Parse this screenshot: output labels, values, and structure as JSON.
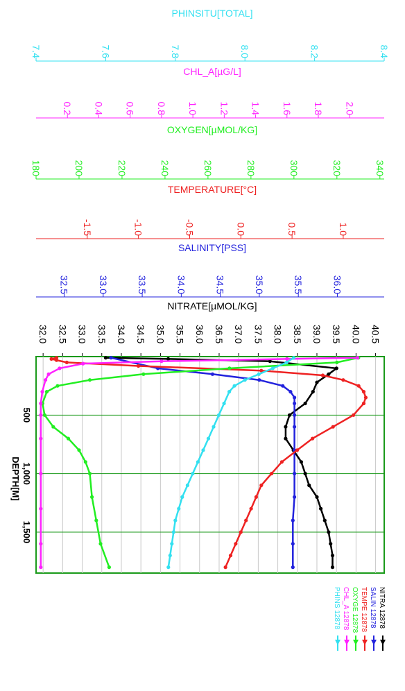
{
  "chart_data": {
    "type": "line",
    "orientation": "rotated-90",
    "depth_axis": {
      "title": "DEPTH[M]",
      "range": [
        0,
        1850
      ],
      "ticks": [
        500,
        1000,
        1500
      ],
      "tick_labels": [
        "500",
        "1,000",
        "1,500"
      ]
    },
    "axes": [
      {
        "key": "phinsitu",
        "title": "PHINSITU[TOTAL]",
        "color": "#33e0f0",
        "range": [
          7.4,
          8.4
        ],
        "ticks": [
          7.4,
          7.6,
          7.8,
          8.0,
          8.2,
          8.4
        ],
        "tick_labels": [
          "7.4",
          "7.6",
          "7.8",
          "8.0",
          "8.2",
          "8.4"
        ]
      },
      {
        "key": "chl",
        "title": "CHL_A[µG/L]",
        "color": "#ff22ff",
        "range": [
          0.0,
          2.22
        ],
        "ticks": [
          0.2,
          0.4,
          0.6,
          0.8,
          1.0,
          1.2,
          1.4,
          1.6,
          1.8,
          2.0
        ],
        "tick_labels": [
          "0.2",
          "0.4",
          "0.6",
          "0.8",
          "1.0",
          "1.2",
          "1.4",
          "1.6",
          "1.8",
          "2.0"
        ]
      },
      {
        "key": "oxygen",
        "title": "OXYGEN[µMOL/KG]",
        "color": "#22ee22",
        "range": [
          180,
          342
        ],
        "ticks": [
          180,
          200,
          220,
          240,
          260,
          280,
          300,
          320,
          340
        ],
        "tick_labels": [
          "180",
          "200",
          "220",
          "240",
          "260",
          "280",
          "300",
          "320",
          "340"
        ]
      },
      {
        "key": "temp",
        "title": "TEMPERATURE[°C]",
        "color": "#ee2222",
        "range": [
          -2.0,
          1.4
        ],
        "ticks": [
          -1.5,
          -1.0,
          -0.5,
          0.0,
          0.5,
          1.0
        ],
        "tick_labels": [
          "-1.5",
          "-1.0",
          "-0.5",
          "0.0",
          "0.5",
          "1.0"
        ]
      },
      {
        "key": "salinity",
        "title": "SALINITY[PSS]",
        "color": "#2222dd",
        "range": [
          32.14,
          36.6
        ],
        "ticks": [
          32.5,
          33.0,
          33.5,
          34.0,
          34.5,
          35.0,
          35.5,
          36.0
        ],
        "tick_labels": [
          "32.5",
          "33.0",
          "33.5",
          "34.0",
          "34.5",
          "35.0",
          "35.5",
          "36.0"
        ]
      },
      {
        "key": "nitrate",
        "title": "NITRATE[µMOL/KG]",
        "color": "#000000",
        "range": [
          31.82,
          40.72
        ],
        "ticks": [
          32.0,
          32.5,
          33.0,
          33.5,
          34.0,
          34.5,
          35.0,
          35.5,
          36.0,
          36.5,
          37.0,
          37.5,
          38.0,
          38.5,
          39.0,
          39.5,
          40.0,
          40.5
        ],
        "tick_labels": [
          "32.0",
          "32.5",
          "33.0",
          "33.5",
          "34.0",
          "34.5",
          "35.0",
          "35.5",
          "36.0",
          "36.5",
          "37.0",
          "37.5",
          "38.0",
          "38.5",
          "39.0",
          "39.5",
          "40.0",
          "40.5"
        ]
      }
    ],
    "series": [
      {
        "key": "nitrate",
        "name": "NITRA 12878",
        "color": "#000000",
        "depth": [
          10,
          20,
          40,
          100,
          150,
          220,
          300,
          400,
          500,
          600,
          700,
          800,
          900,
          1000,
          1100,
          1200,
          1300,
          1400,
          1500,
          1600,
          1700,
          1800
        ],
        "values": [
          33.6,
          35.2,
          37.8,
          39.5,
          39.3,
          39.0,
          38.9,
          38.7,
          38.3,
          38.2,
          38.2,
          38.4,
          38.6,
          38.7,
          38.8,
          39.0,
          39.1,
          39.2,
          39.3,
          39.35,
          39.4,
          39.4
        ]
      },
      {
        "key": "salinity",
        "name": "SALIN 12878",
        "color": "#2222dd",
        "depth": [
          10,
          100,
          150,
          200,
          250,
          300,
          350,
          400,
          500,
          600,
          800,
          1000,
          1200,
          1400,
          1600,
          1800
        ],
        "values": [
          33.1,
          33.7,
          34.4,
          35.0,
          35.3,
          35.4,
          35.45,
          35.45,
          35.45,
          35.45,
          35.45,
          35.45,
          35.45,
          35.43,
          35.43,
          35.43
        ]
      },
      {
        "key": "temp",
        "name": "TEMPE 12878",
        "color": "#ee2222",
        "depth": [
          10,
          20,
          30,
          50,
          80,
          120,
          160,
          200,
          250,
          300,
          350,
          400,
          500,
          600,
          700,
          800,
          900,
          1000,
          1100,
          1200,
          1300,
          1400,
          1500,
          1600,
          1700,
          1800
        ],
        "values": [
          -1.8,
          -1.85,
          -1.8,
          -1.7,
          -1.0,
          0.2,
          0.8,
          1.0,
          1.15,
          1.2,
          1.22,
          1.2,
          1.1,
          0.9,
          0.7,
          0.55,
          0.4,
          0.3,
          0.2,
          0.15,
          0.1,
          0.05,
          0.0,
          -0.05,
          -0.1,
          -0.15
        ]
      },
      {
        "key": "oxygen",
        "name": "OXYGE 12878",
        "color": "#22ee22",
        "depth": [
          10,
          50,
          100,
          150,
          200,
          250,
          300,
          400,
          500,
          600,
          700,
          800,
          900,
          1000,
          1200,
          1400,
          1600,
          1800
        ],
        "values": [
          330,
          320,
          270,
          230,
          205,
          190,
          185,
          183,
          184,
          188,
          195,
          200,
          203,
          205,
          206,
          208,
          210,
          214
        ]
      },
      {
        "key": "chl",
        "name": "CHL_A 12878",
        "color": "#ff22ff",
        "depth": [
          10,
          20,
          40,
          60,
          100,
          150,
          200,
          300,
          400,
          500,
          700,
          1000,
          1300,
          1600,
          1800
        ],
        "values": [
          2.05,
          1.6,
          0.8,
          0.3,
          0.15,
          0.08,
          0.06,
          0.04,
          0.03,
          0.03,
          0.03,
          0.03,
          0.03,
          0.03,
          0.03
        ]
      },
      {
        "key": "phinsitu",
        "name": "PHINS 12878",
        "color": "#33e0f0",
        "depth": [
          10,
          50,
          100,
          150,
          200,
          250,
          300,
          400,
          500,
          600,
          700,
          800,
          900,
          1000,
          1100,
          1200,
          1300,
          1400,
          1500,
          1600,
          1700,
          1800
        ],
        "values": [
          8.14,
          8.12,
          8.08,
          8.04,
          8.0,
          7.97,
          7.955,
          7.94,
          7.925,
          7.91,
          7.895,
          7.88,
          7.865,
          7.85,
          7.835,
          7.82,
          7.81,
          7.8,
          7.795,
          7.79,
          7.785,
          7.78
        ]
      }
    ]
  }
}
